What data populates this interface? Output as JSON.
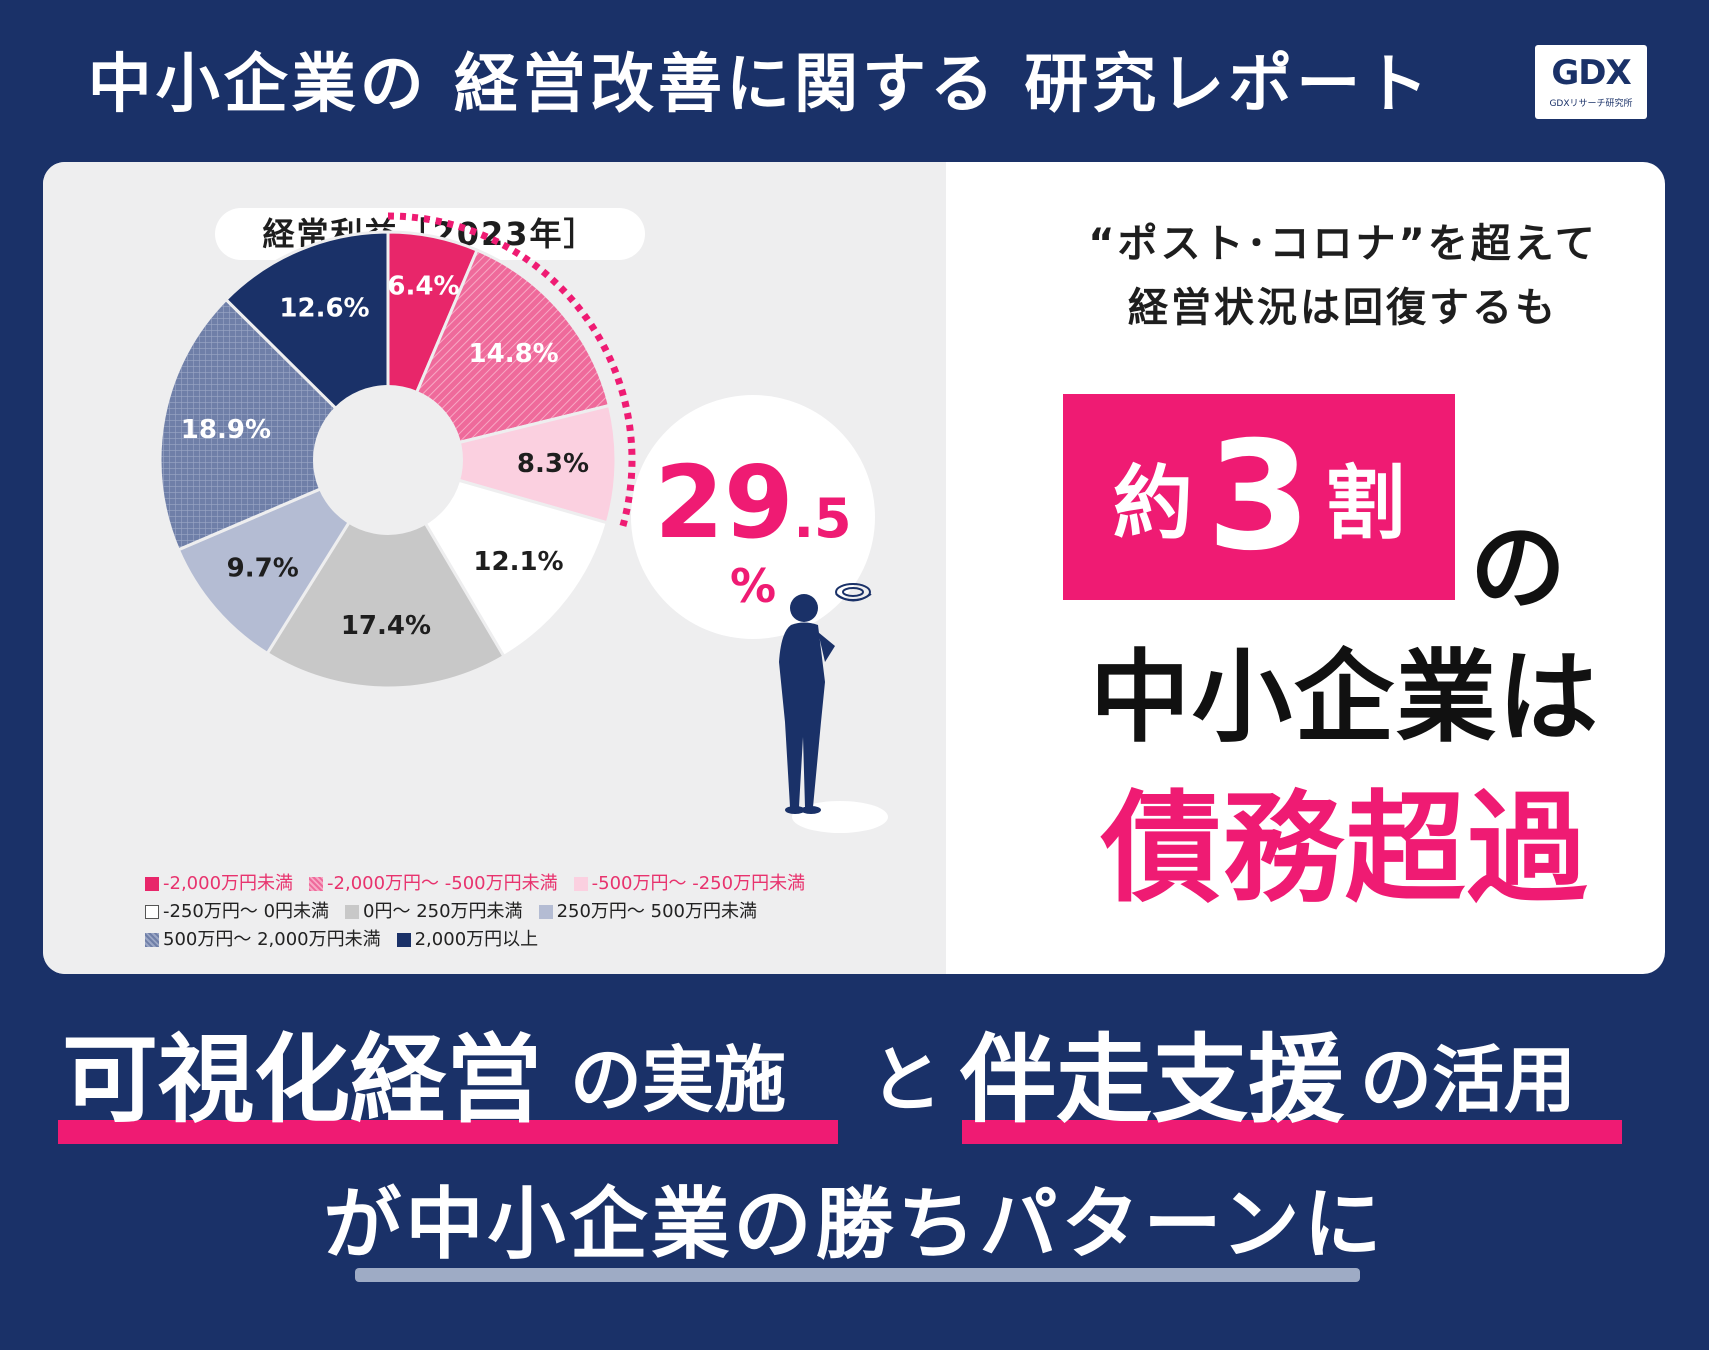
{
  "header": {
    "title": "中小企業の 経営改善に関する 研究レポート",
    "logo_mark": "GDX",
    "logo_sub": "GDXリサーチ研究所"
  },
  "chart_data": {
    "type": "pie",
    "title": "経常利益［2023年］",
    "slices": [
      {
        "label": "-2,000万円未満",
        "value": 6.4,
        "value_label": "6.4%",
        "color": "#e8266a",
        "pattern": "solid"
      },
      {
        "label": "-2,000万円～ -500万円未満",
        "value": 14.8,
        "value_label": "14.8%",
        "color": "#ef6a9b",
        "pattern": "hatch"
      },
      {
        "label": "-500万円～ -250万円未満",
        "value": 8.3,
        "value_label": "8.3%",
        "color": "#fbd0e0",
        "pattern": "solid"
      },
      {
        "label": "-250万円～ 0円未満",
        "value": 12.1,
        "value_label": "12.1%",
        "color": "#ffffff",
        "pattern": "solid"
      },
      {
        "label": "0円～ 250万円未満",
        "value": 17.4,
        "value_label": "17.4%",
        "color": "#c8c8c8",
        "pattern": "solid"
      },
      {
        "label": "250万円～ 500万円未満",
        "value": 9.7,
        "value_label": "9.7%",
        "color": "#b4bcd3",
        "pattern": "solid"
      },
      {
        "label": "500万円～ 2,000万円未満",
        "value": 18.9,
        "value_label": "18.9%",
        "color": "#6f7fa8",
        "pattern": "grid"
      },
      {
        "label": "2,000万円以上",
        "value": 12.6,
        "value_label": "12.6%",
        "color": "#1a3168",
        "pattern": "solid"
      }
    ],
    "callout": {
      "value": "29.5",
      "value_int": "29",
      "value_dec": ".5",
      "unit": "%"
    },
    "legend_placement": "bottom"
  },
  "headline": {
    "line1": "“ポスト･コロナ”を超えて",
    "line2": "経営状況は回復するも",
    "box_pre": "約",
    "box_num": "3",
    "box_post": "割",
    "no": "の",
    "sme_line": "中小企業は",
    "debt_line": "債務超過"
  },
  "bottom": {
    "p1": "可視化経営",
    "p2": "の実施",
    "p3": "と",
    "p4": "伴走支援",
    "p5": "の活用",
    "line2": "が中小企業の勝ちパターンに"
  },
  "colors": {
    "navy": "#1a3168",
    "pink": "#ef1b73"
  }
}
